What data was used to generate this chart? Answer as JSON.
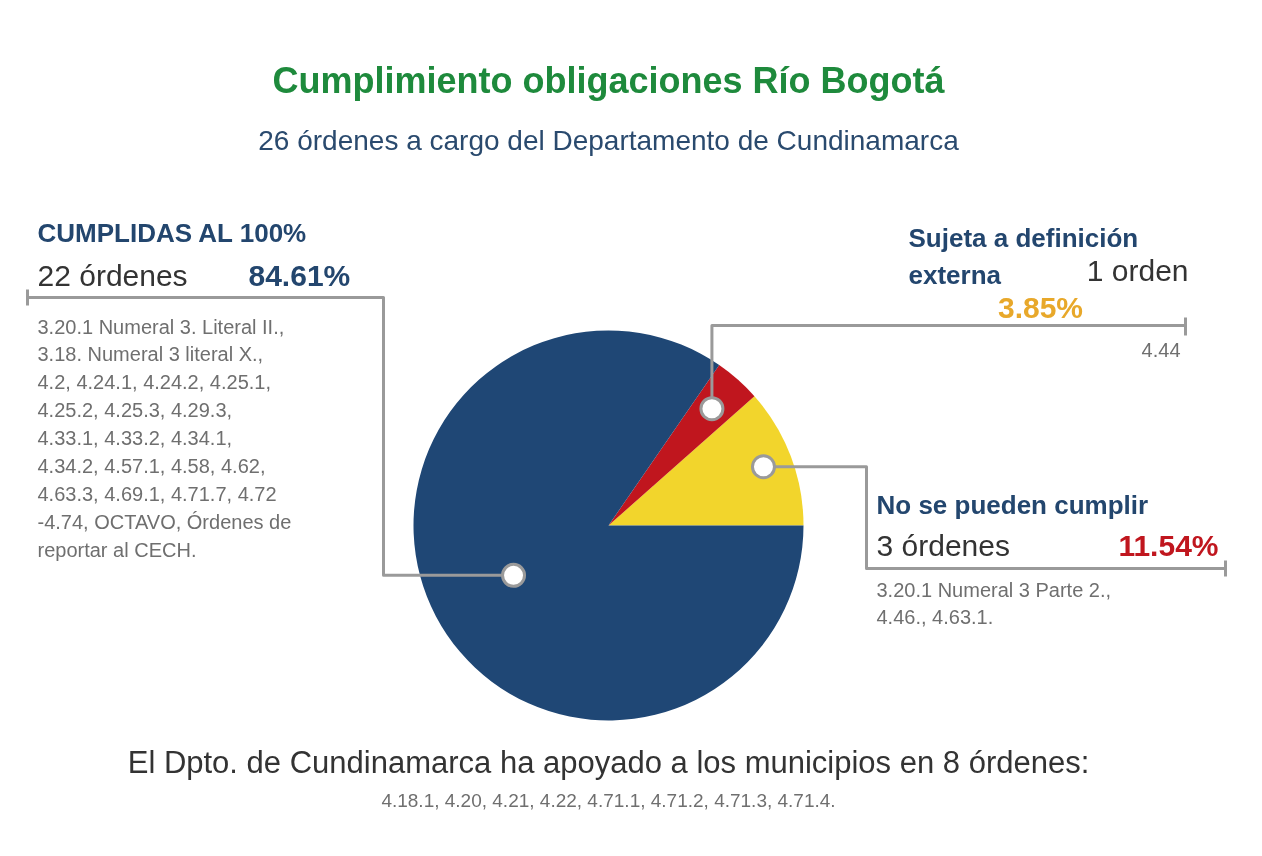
{
  "chart_data": {
    "type": "pie",
    "title": "Cumplimiento obligaciones Río Bogotá",
    "subtitle": "26 órdenes a cargo del Departamento de Cundinamarca",
    "categories": [
      "No se pueden cumplir",
      "Sujeta a definición\nexterna",
      "CUMPLIDAS AL 100%"
    ],
    "values": [
      11.54,
      3.85,
      84.61
    ],
    "colors": [
      "#f2d52c",
      "#c0161e",
      "#1f4775"
    ],
    "value_labels": [
      "11.54%",
      "3.85%",
      "84.61%"
    ],
    "annotations": [
      "3 órdenes",
      "3.20.1  Numeral 3 Parte 2.,\n4.46., 4.63.1.",
      "1 orden",
      "4.44",
      "22 órdenes",
      "3.20.1  Numeral 3. Literal II.,\n3.18. Numeral 3 literal X.,\n4.2, 4.24.1, 4.24.2, 4.25.1,\n4.25.2, 4.25.3, 4.29.3,\n4.33.1, 4.33.2, 4.34.1,\n4.34.2, 4.57.1, 4.58, 4.62,\n4.63.3,  4.69.1, 4.71.7, 4.72\n-4.74, OCTAVO, Órdenes de\nreportar al CECH.",
      "El Dpto. de Cundinamarca ha apoyado a los municipios en 8 órdenes:",
      "4.18.1, 4.20, 4.21, 4.22, 4.71.1, 4.71.2, 4.71.3, 4.71.4."
    ]
  }
}
